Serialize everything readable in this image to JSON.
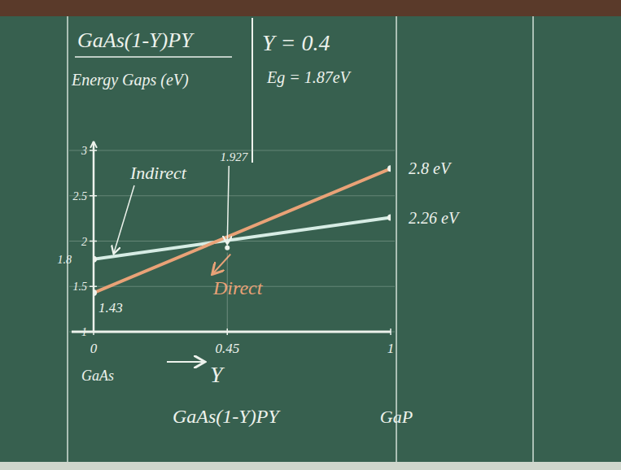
{
  "chart_data": {
    "type": "line",
    "title": "GaAs(1-Y)PY",
    "y_label": "Energy Gaps (eV)",
    "x_label": "Y",
    "x_title": "GaAs(1-Y)PY",
    "x_end_labels": [
      "GaAs",
      "GaP"
    ],
    "x": [
      0,
      1
    ],
    "series": [
      {
        "name": "Indirect",
        "color": "#d6ece4",
        "values": [
          1.8,
          2.26
        ],
        "value_labels": [
          "1.8",
          "2.26 eV"
        ]
      },
      {
        "name": "Direct",
        "color": "#e9a277",
        "values": [
          1.43,
          2.8
        ],
        "value_labels": [
          "1.43",
          "2.8 eV"
        ]
      }
    ],
    "crossover": {
      "x": 0.45,
      "y": 1.927
    },
    "example": [
      "Y = 0.4",
      "Eg = 1.87eV"
    ],
    "xlim": [
      0,
      1
    ],
    "xticks": [
      0,
      0.45,
      1
    ],
    "ylim": [
      1,
      3.1
    ],
    "yticks": [
      1,
      1.5,
      2,
      2.5,
      3
    ],
    "grid": true
  }
}
